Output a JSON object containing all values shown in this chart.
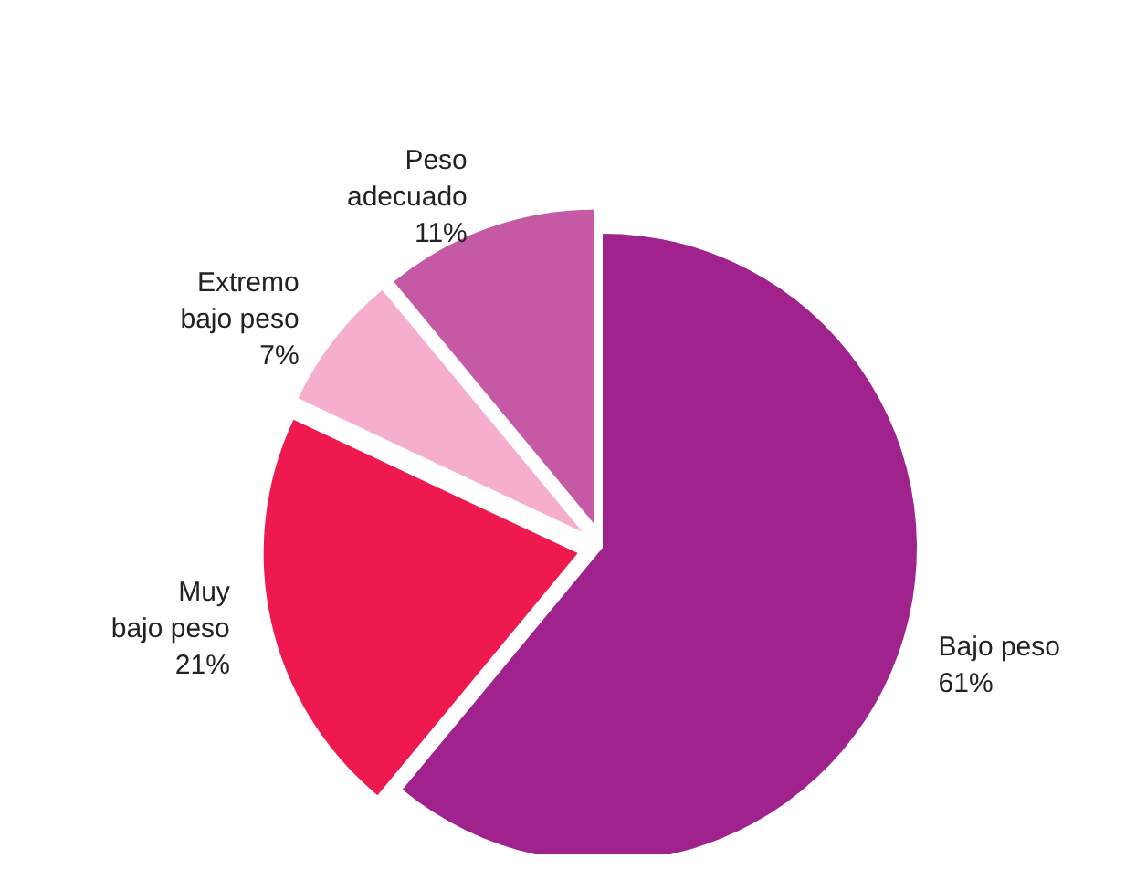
{
  "chart_data": {
    "type": "pie",
    "categories": [
      "Bajo peso",
      "Muy bajo peso",
      "Extremo bajo peso",
      "Peso adecuado"
    ],
    "values": [
      61,
      21,
      7,
      11
    ],
    "colors": [
      "#a0228c",
      "#ee1a4f",
      "#f5aecd",
      "#c659a4"
    ],
    "value_labels": [
      "61%",
      "21%",
      "7%",
      "11%"
    ]
  }
}
